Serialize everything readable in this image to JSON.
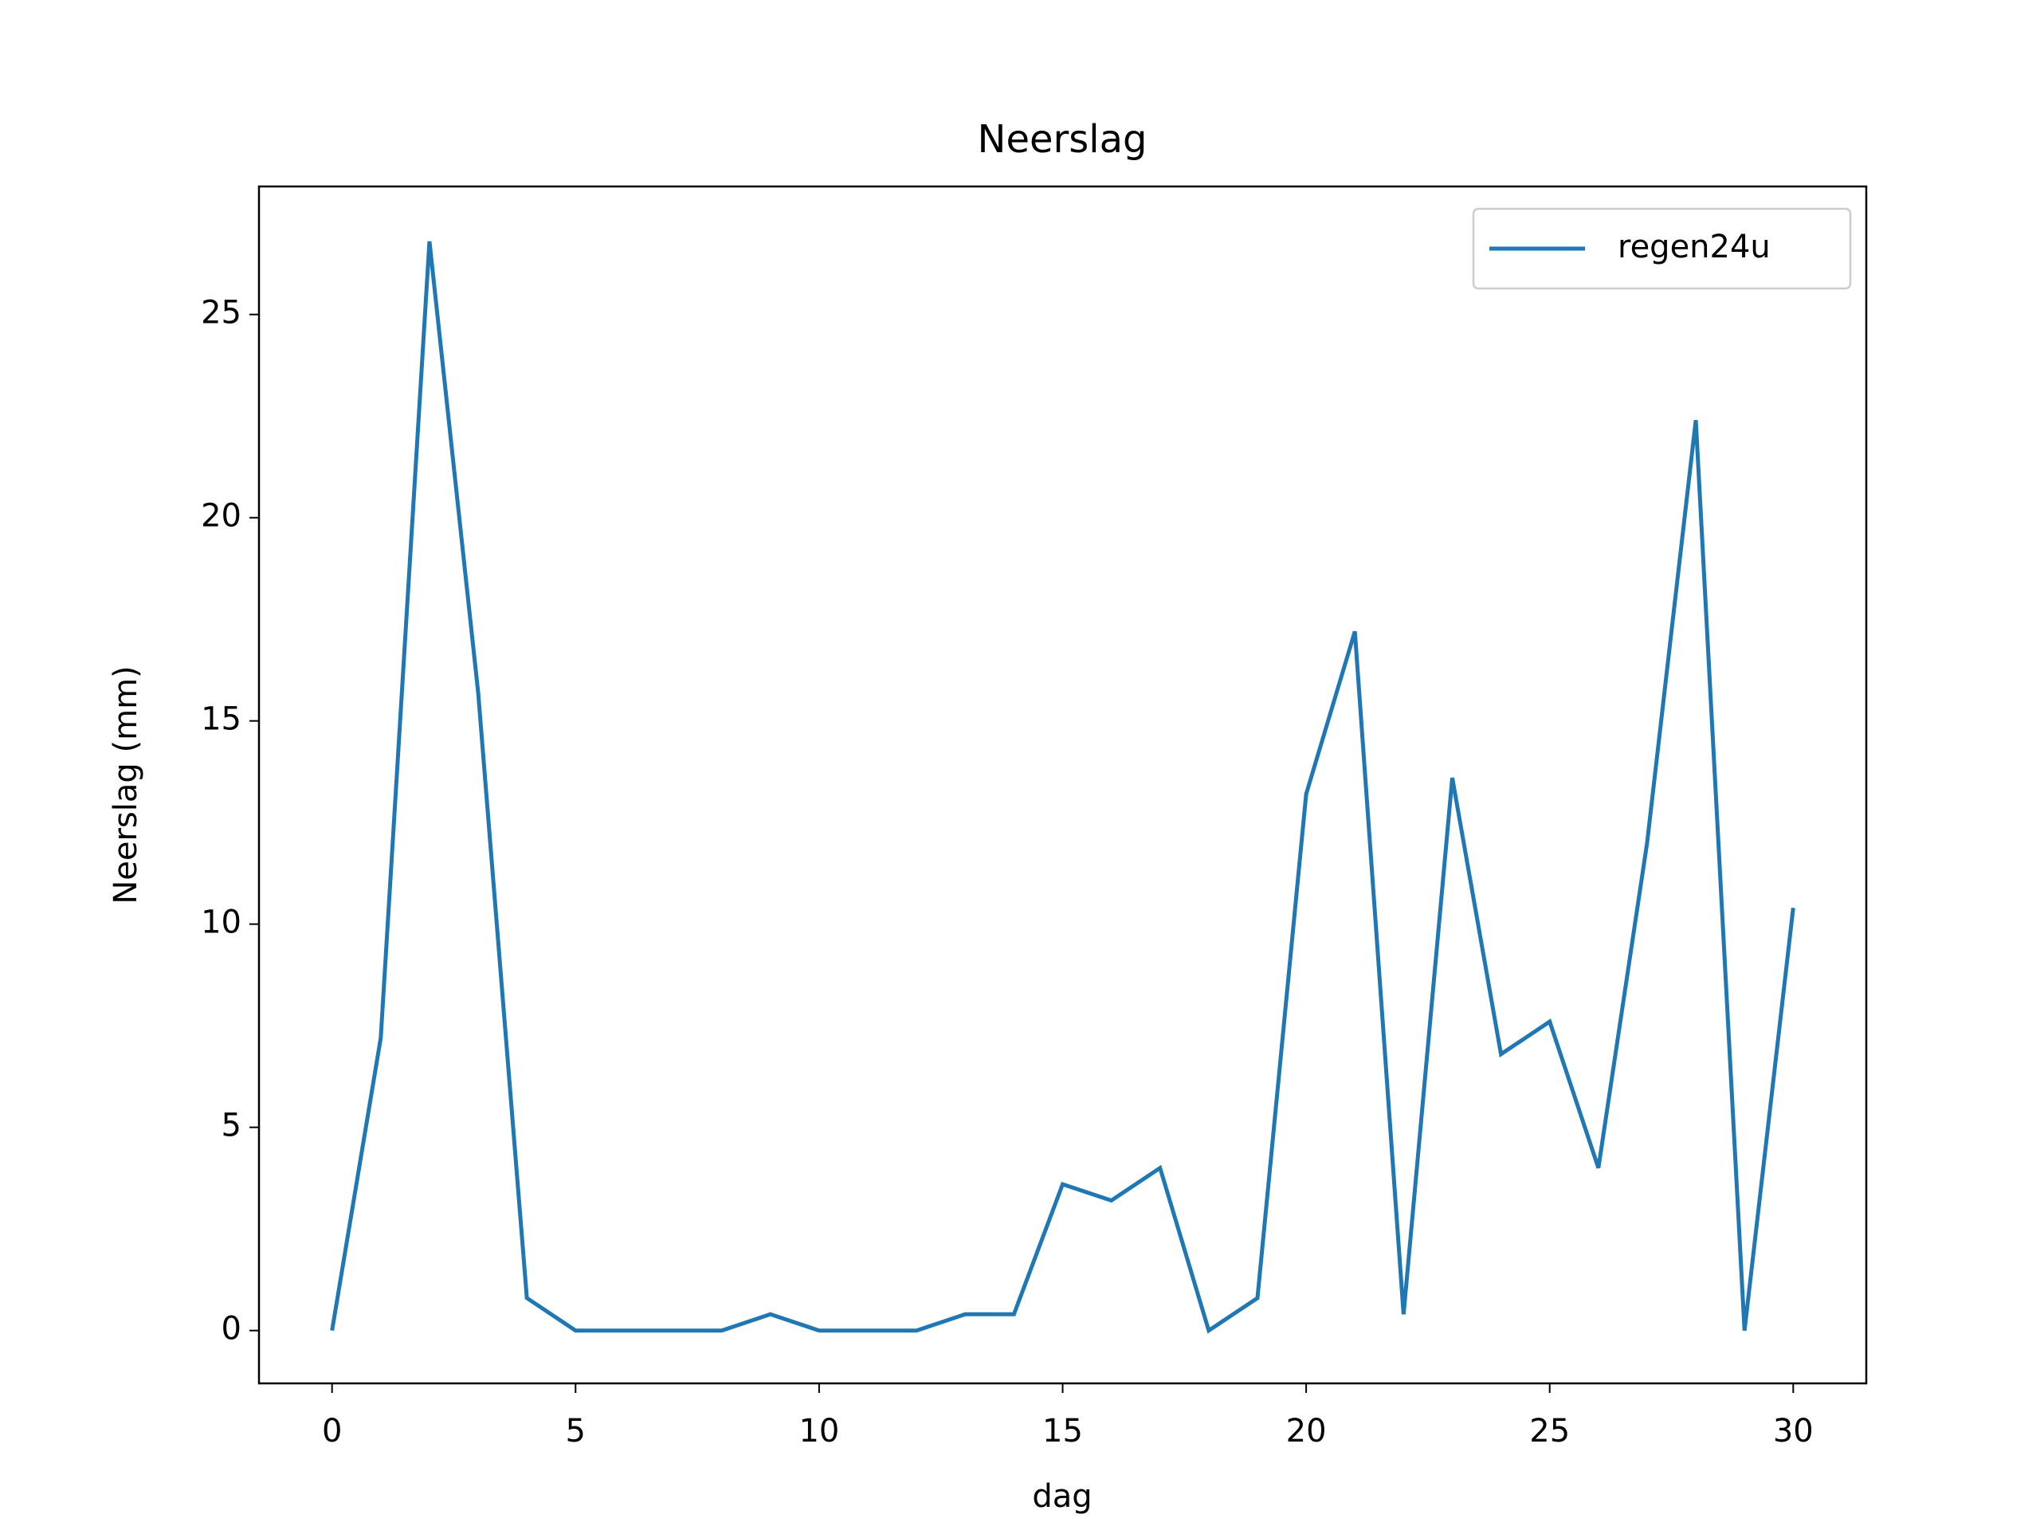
{
  "chart_data": {
    "type": "line",
    "title": "Neerslag",
    "x_label": "dag",
    "y_label": "Neerslag (mm)",
    "x": [
      0,
      1,
      2,
      3,
      4,
      5,
      6,
      7,
      8,
      9,
      10,
      11,
      12,
      13,
      14,
      15,
      16,
      17,
      18,
      19,
      20,
      21,
      22,
      23,
      24,
      25,
      26,
      27,
      28,
      29,
      30
    ],
    "series": [
      {
        "name": "regen24u",
        "color": "#1f77b4",
        "values": [
          0,
          7.2,
          26.8,
          15.7,
          0.8,
          0,
          0,
          0,
          0,
          0.4,
          0,
          0,
          0,
          0.4,
          0.4,
          3.6,
          3.2,
          4.0,
          0,
          0.8,
          13.2,
          17.2,
          0.4,
          13.6,
          6.8,
          7.6,
          4.0,
          12.0,
          22.4,
          0,
          10.4
        ]
      }
    ],
    "xlim": [
      -1.5,
      31.5
    ],
    "xticks": [
      0,
      5,
      10,
      15,
      20,
      25,
      30
    ],
    "ylim": [
      -1.3,
      28.15
    ],
    "yticks": [
      0,
      5,
      10,
      15,
      20,
      25
    ],
    "grid": false,
    "legend": "upper right"
  }
}
